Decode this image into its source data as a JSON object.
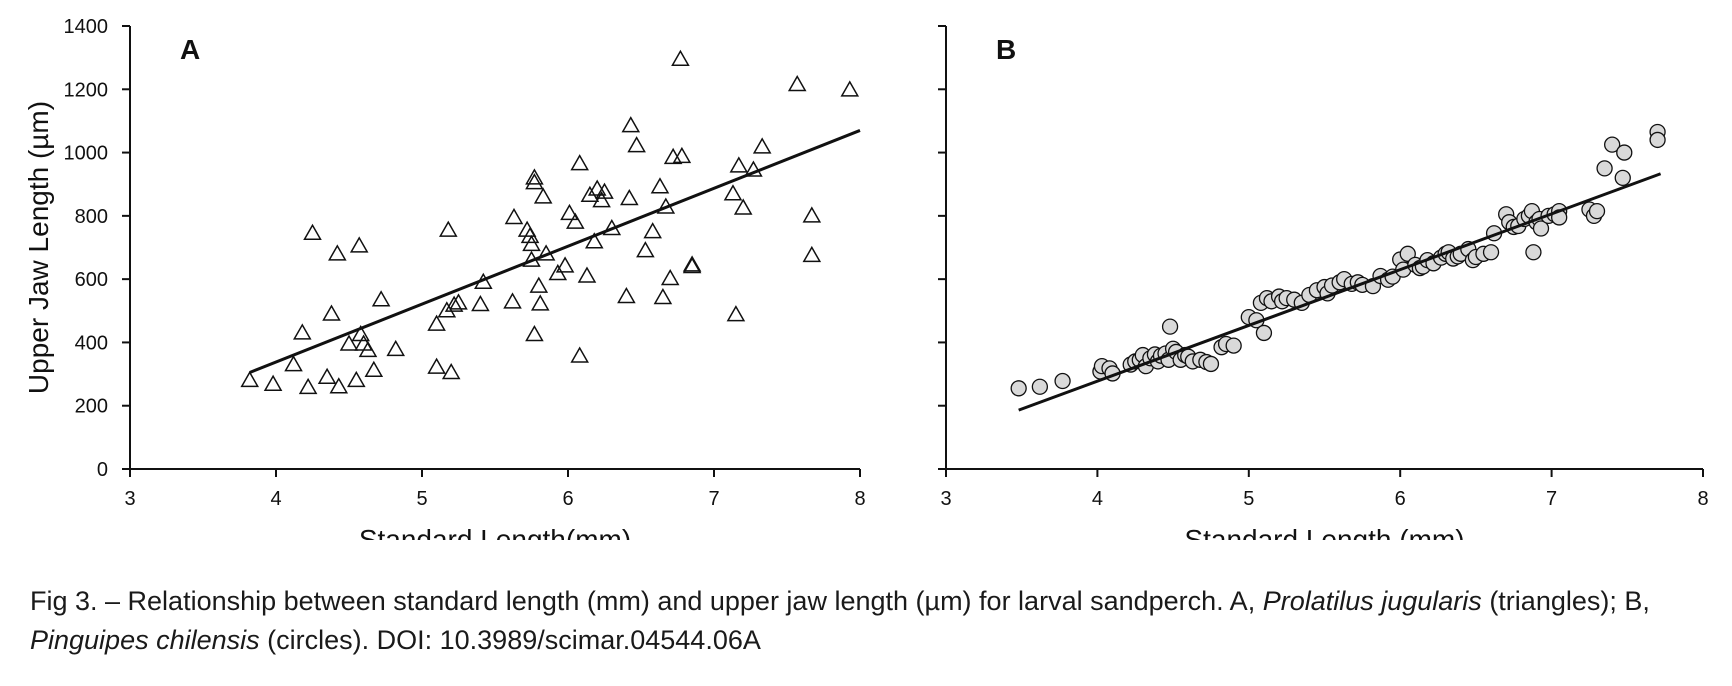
{
  "figure": {
    "colors": {
      "axis": "#111111",
      "marker_fill": "#d9d9d9",
      "marker_stroke": "#111111",
      "line": "#111111"
    }
  },
  "caption": {
    "prefix": "Fig 3. – Relationship between standard length (mm) and upper jaw length (µm) for larval sandperch. A, ",
    "species_a": "Prolatilus jugularis",
    "mid1": " (triangles); B, ",
    "species_b": "Pinguipes chilensis",
    "suffix": " (circles). DOI: 10.3989/scimar.04544.06A"
  },
  "chart_data": [
    {
      "type": "scatter",
      "panel_label": "A",
      "marker": "triangle",
      "xlabel": "Standard Length(mm)",
      "ylabel": "Upper Jaw Length (µm)",
      "xlim": [
        3,
        8
      ],
      "ylim": [
        0,
        1400
      ],
      "xticks": [
        3,
        4,
        5,
        6,
        7,
        8
      ],
      "yticks": [
        0,
        200,
        400,
        600,
        800,
        1000,
        1200,
        1400
      ],
      "grid": false,
      "trendline": {
        "x": [
          3.82,
          8.0
        ],
        "y": [
          305,
          1070
        ]
      },
      "points": [
        [
          3.82,
          280
        ],
        [
          3.98,
          268
        ],
        [
          4.12,
          330
        ],
        [
          4.18,
          430
        ],
        [
          4.22,
          258
        ],
        [
          4.25,
          745
        ],
        [
          4.35,
          290
        ],
        [
          4.38,
          490
        ],
        [
          4.42,
          680
        ],
        [
          4.43,
          260
        ],
        [
          4.5,
          395
        ],
        [
          4.55,
          280
        ],
        [
          4.57,
          705
        ],
        [
          4.58,
          425
        ],
        [
          4.6,
          395
        ],
        [
          4.63,
          375
        ],
        [
          4.67,
          312
        ],
        [
          4.72,
          535
        ],
        [
          4.82,
          378
        ],
        [
          5.1,
          322
        ],
        [
          5.1,
          458
        ],
        [
          5.17,
          500
        ],
        [
          5.18,
          755
        ],
        [
          5.2,
          305
        ],
        [
          5.22,
          518
        ],
        [
          5.25,
          525
        ],
        [
          5.4,
          520
        ],
        [
          5.42,
          590
        ],
        [
          5.62,
          528
        ],
        [
          5.63,
          795
        ],
        [
          5.72,
          755
        ],
        [
          5.74,
          735
        ],
        [
          5.75,
          660
        ],
        [
          5.75,
          710
        ],
        [
          5.77,
          920
        ],
        [
          5.77,
          905
        ],
        [
          5.77,
          425
        ],
        [
          5.8,
          578
        ],
        [
          5.81,
          522
        ],
        [
          5.83,
          860
        ],
        [
          5.85,
          680
        ],
        [
          5.93,
          618
        ],
        [
          5.98,
          642
        ],
        [
          6.01,
          808
        ],
        [
          6.05,
          780
        ],
        [
          6.08,
          965
        ],
        [
          6.08,
          357
        ],
        [
          6.13,
          610
        ],
        [
          6.15,
          865
        ],
        [
          6.18,
          718
        ],
        [
          6.2,
          885
        ],
        [
          6.23,
          848
        ],
        [
          6.25,
          875
        ],
        [
          6.3,
          760
        ],
        [
          6.4,
          545
        ],
        [
          6.42,
          855
        ],
        [
          6.43,
          1085
        ],
        [
          6.47,
          1022
        ],
        [
          6.53,
          690
        ],
        [
          6.58,
          750
        ],
        [
          6.63,
          892
        ],
        [
          6.65,
          542
        ],
        [
          6.67,
          828
        ],
        [
          6.7,
          602
        ],
        [
          6.72,
          985
        ],
        [
          6.77,
          1295
        ],
        [
          6.78,
          988
        ],
        [
          6.85,
          645
        ],
        [
          6.85,
          640
        ],
        [
          7.13,
          870
        ],
        [
          7.15,
          488
        ],
        [
          7.17,
          958
        ],
        [
          7.2,
          825
        ],
        [
          7.27,
          945
        ],
        [
          7.33,
          1018
        ],
        [
          7.57,
          1215
        ],
        [
          7.67,
          800
        ],
        [
          7.67,
          675
        ],
        [
          7.93,
          1198
        ]
      ]
    },
    {
      "type": "scatter",
      "panel_label": "B",
      "marker": "circle",
      "xlabel": "Standard Length (mm)",
      "ylabel": "",
      "xlim": [
        3,
        8
      ],
      "ylim": [
        0,
        1400
      ],
      "xticks": [
        3,
        4,
        5,
        6,
        7,
        8
      ],
      "yticks": [
        0,
        200,
        400,
        600,
        800,
        1000,
        1200,
        1400
      ],
      "grid": false,
      "trendline": {
        "x": [
          3.48,
          7.72
        ],
        "y": [
          186,
          933
        ]
      },
      "points": [
        [
          3.48,
          255
        ],
        [
          3.62,
          260
        ],
        [
          3.77,
          278
        ],
        [
          4.02,
          308
        ],
        [
          4.03,
          325
        ],
        [
          4.08,
          318
        ],
        [
          4.1,
          302
        ],
        [
          4.22,
          330
        ],
        [
          4.25,
          340
        ],
        [
          4.28,
          345
        ],
        [
          4.3,
          360
        ],
        [
          4.32,
          325
        ],
        [
          4.35,
          350
        ],
        [
          4.38,
          362
        ],
        [
          4.4,
          340
        ],
        [
          4.42,
          358
        ],
        [
          4.45,
          365
        ],
        [
          4.47,
          345
        ],
        [
          4.48,
          450
        ],
        [
          4.5,
          380
        ],
        [
          4.52,
          370
        ],
        [
          4.55,
          345
        ],
        [
          4.58,
          360
        ],
        [
          4.6,
          355
        ],
        [
          4.63,
          340
        ],
        [
          4.68,
          345
        ],
        [
          4.72,
          338
        ],
        [
          4.75,
          332
        ],
        [
          4.82,
          385
        ],
        [
          4.85,
          395
        ],
        [
          4.9,
          390
        ],
        [
          5.0,
          480
        ],
        [
          5.05,
          470
        ],
        [
          5.08,
          525
        ],
        [
          5.1,
          430
        ],
        [
          5.12,
          540
        ],
        [
          5.15,
          530
        ],
        [
          5.2,
          545
        ],
        [
          5.22,
          530
        ],
        [
          5.25,
          540
        ],
        [
          5.3,
          535
        ],
        [
          5.35,
          525
        ],
        [
          5.4,
          550
        ],
        [
          5.45,
          565
        ],
        [
          5.5,
          575
        ],
        [
          5.52,
          555
        ],
        [
          5.55,
          580
        ],
        [
          5.6,
          590
        ],
        [
          5.63,
          600
        ],
        [
          5.68,
          585
        ],
        [
          5.72,
          590
        ],
        [
          5.75,
          582
        ],
        [
          5.82,
          578
        ],
        [
          5.87,
          610
        ],
        [
          5.92,
          598
        ],
        [
          5.95,
          608
        ],
        [
          6.0,
          662
        ],
        [
          6.02,
          630
        ],
        [
          6.05,
          680
        ],
        [
          6.1,
          645
        ],
        [
          6.13,
          635
        ],
        [
          6.15,
          640
        ],
        [
          6.18,
          660
        ],
        [
          6.22,
          650
        ],
        [
          6.27,
          668
        ],
        [
          6.3,
          680
        ],
        [
          6.32,
          685
        ],
        [
          6.35,
          665
        ],
        [
          6.38,
          672
        ],
        [
          6.4,
          680
        ],
        [
          6.45,
          695
        ],
        [
          6.48,
          660
        ],
        [
          6.5,
          670
        ],
        [
          6.55,
          680
        ],
        [
          6.6,
          685
        ],
        [
          6.62,
          745
        ],
        [
          6.7,
          805
        ],
        [
          6.72,
          780
        ],
        [
          6.75,
          765
        ],
        [
          6.78,
          768
        ],
        [
          6.82,
          790
        ],
        [
          6.85,
          800
        ],
        [
          6.87,
          815
        ],
        [
          6.88,
          685
        ],
        [
          6.9,
          780
        ],
        [
          6.92,
          790
        ],
        [
          6.93,
          760
        ],
        [
          6.98,
          800
        ],
        [
          7.02,
          805
        ],
        [
          7.05,
          815
        ],
        [
          7.05,
          795
        ],
        [
          7.25,
          820
        ],
        [
          7.28,
          800
        ],
        [
          7.3,
          815
        ],
        [
          7.35,
          950
        ],
        [
          7.4,
          1025
        ],
        [
          7.47,
          920
        ],
        [
          7.48,
          1000
        ],
        [
          7.7,
          1065
        ],
        [
          7.7,
          1040
        ]
      ]
    }
  ]
}
